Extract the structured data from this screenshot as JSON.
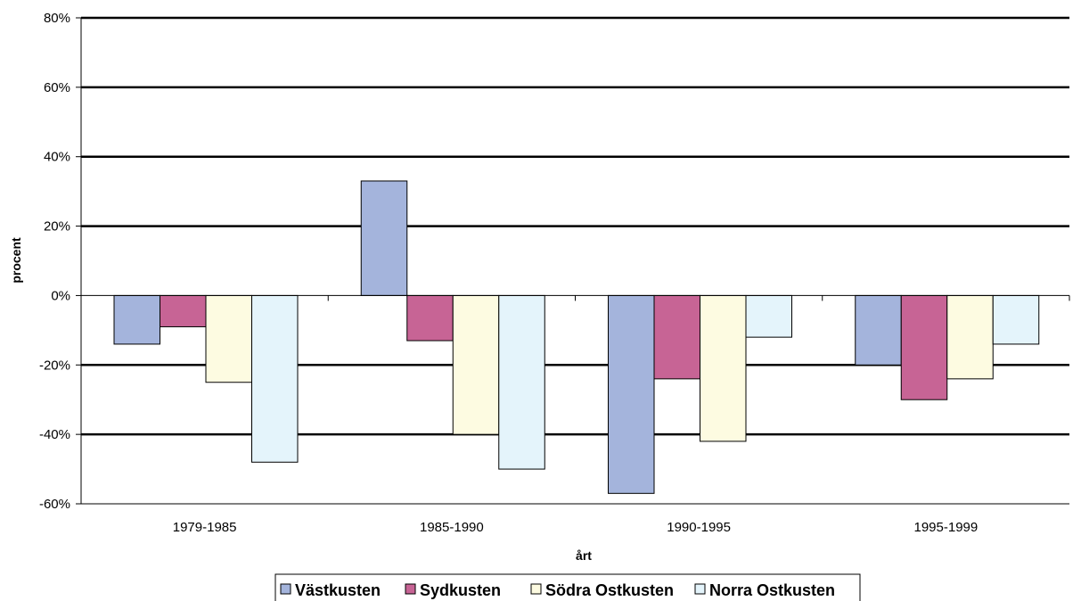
{
  "chart_data": {
    "type": "bar",
    "categories": [
      "1979-1985",
      "1985-1990",
      "1990-1995",
      "1995-1999"
    ],
    "series": [
      {
        "name": "Västkusten",
        "color": "#a4b4dc",
        "values": [
          -14,
          33,
          -57,
          -20
        ]
      },
      {
        "name": "Sydkusten",
        "color": "#c76495",
        "values": [
          -9,
          -13,
          -24,
          -30
        ]
      },
      {
        "name": "Södra Ostkusten",
        "color": "#fdfbe1",
        "values": [
          -25,
          -40,
          -42,
          -24
        ]
      },
      {
        "name": "Norra Ostkusten",
        "color": "#e4f4fb",
        "values": [
          -48,
          -50,
          -12,
          -14
        ]
      }
    ],
    "xlabel": "årt",
    "ylabel": "procent",
    "ylim": [
      -60,
      80
    ],
    "yticks": [
      80,
      60,
      40,
      20,
      0,
      -20,
      -40,
      -60
    ],
    "ytick_labels": [
      "80%",
      "60%",
      "40%",
      "20%",
      "0%",
      "-20%",
      "-40%",
      "-60%"
    ],
    "grid": true,
    "legend_position": "bottom"
  }
}
